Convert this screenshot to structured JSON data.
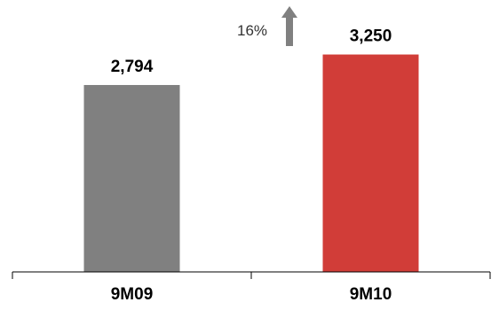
{
  "chart_data": {
    "type": "bar",
    "categories": [
      "9M09",
      "9M10"
    ],
    "values": [
      2794,
      3250
    ],
    "value_labels": [
      "2,794",
      "3,250"
    ],
    "bar_colors": [
      "#808080",
      "#d13d38"
    ],
    "ylim": [
      0,
      3800
    ],
    "grid": false,
    "legend": "none",
    "annotation": {
      "text": "16%",
      "arrow": "up-arrow-icon",
      "arrow_color": "#808080"
    }
  }
}
